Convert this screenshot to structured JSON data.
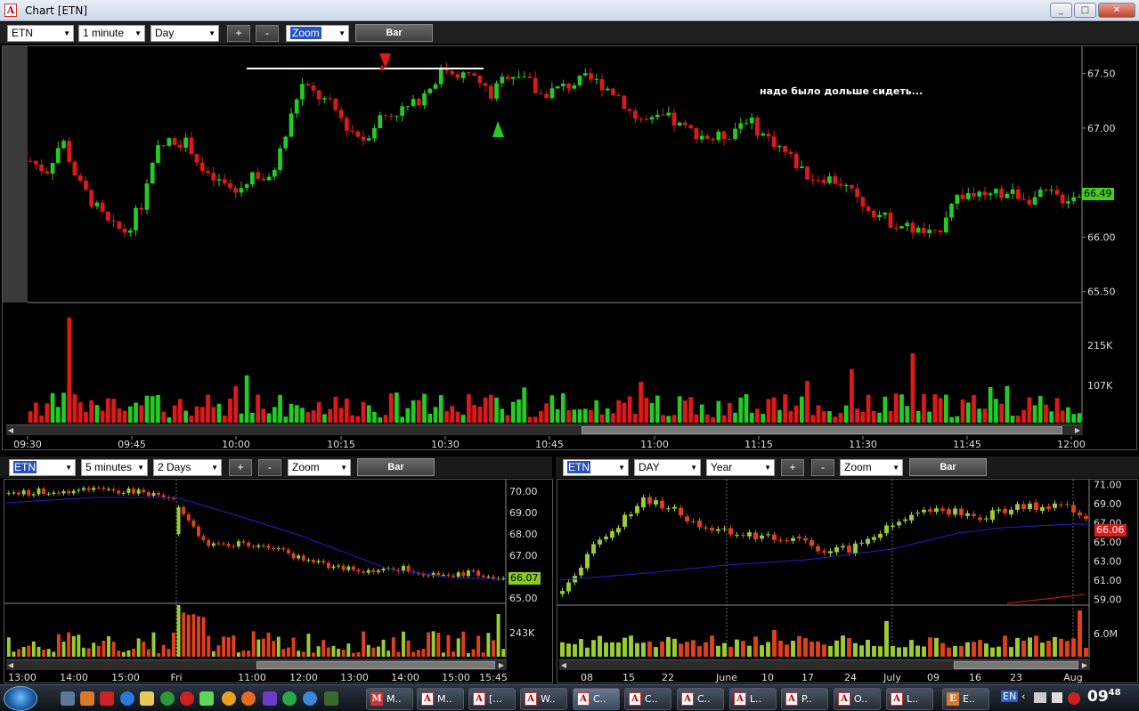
{
  "window": {
    "title": "Chart [ETN]",
    "app_icon": "A",
    "min": "_",
    "max": "□",
    "close": "✕"
  },
  "colors": {
    "up": "#22cc22",
    "down": "#e01818",
    "volume_up": "#22cc22",
    "volume_down": "#e01818",
    "small_up": "#9acd32",
    "small_down": "#e0401a",
    "ma_line": "#2020d0",
    "accent_select": "#2a52be"
  },
  "main": {
    "toolbar": {
      "symbol": "ETN",
      "interval": "1 minute",
      "range": "Day",
      "plus": "+",
      "minus": "-",
      "mode": "Zoom",
      "bar": "Bar"
    },
    "annotation": "надо было дольше сидеть...",
    "price_tag": "66.49",
    "price_ticks": [
      "67.50",
      "67.00",
      "66.00",
      "65.50"
    ],
    "volume_ticks": [
      "215K",
      "107K"
    ],
    "time_ticks": [
      "09:30",
      "09:45",
      "10:00",
      "10:15",
      "10:30",
      "10:45",
      "11:00",
      "11:15",
      "11:30",
      "11:45",
      "12:00"
    ]
  },
  "left": {
    "toolbar": {
      "symbol": "ETN",
      "interval": "5 minutes",
      "range": "2 Days",
      "plus": "+",
      "minus": "-",
      "mode": "Zoom",
      "bar": "Bar"
    },
    "price_tag": "66.07",
    "price_ticks": [
      "70.00",
      "69.00",
      "68.00",
      "67.00",
      "65.00"
    ],
    "volume_ticks": [
      "243K"
    ],
    "time_ticks": [
      "13:00",
      "14:00",
      "15:00",
      "Fri",
      "11:00",
      "12:00",
      "13:00",
      "14:00",
      "15:00",
      "15:45"
    ]
  },
  "right": {
    "toolbar": {
      "symbol": "ETN",
      "interval": "DAY",
      "range": "Year",
      "plus": "+",
      "minus": "-",
      "mode": "Zoom",
      "bar": "Bar"
    },
    "price_tag": "66.06",
    "price_ticks": [
      "71.00",
      "69.00",
      "67.00",
      "65.00",
      "63.00",
      "61.00",
      "59.00"
    ],
    "volume_ticks": [
      "6.0M"
    ],
    "time_ticks": [
      "08",
      "15",
      "22",
      "June",
      "10",
      "17",
      "24",
      "July",
      "09",
      "16",
      "23",
      "Aug"
    ]
  },
  "chart_data": [
    {
      "type": "candlestick",
      "symbol": "ETN",
      "interval": "1 minute",
      "range": "Day",
      "ylim": [
        65.4,
        67.75
      ],
      "last_price": 66.49,
      "x_ticks": [
        "09:30",
        "09:45",
        "10:00",
        "10:15",
        "10:30",
        "10:45",
        "11:00",
        "11:15",
        "11:30",
        "11:45",
        "12:00"
      ],
      "price_ticks": [
        67.5,
        67.0,
        66.0,
        65.5
      ],
      "volume_ticks": [
        "215K",
        "107K"
      ],
      "close_path": [
        66.7,
        66.6,
        66.9,
        66.5,
        66.3,
        66.1,
        66.05,
        66.3,
        66.8,
        66.9,
        66.85,
        66.55,
        66.5,
        66.4,
        66.6,
        66.5,
        66.9,
        67.4,
        67.3,
        67.2,
        67.0,
        66.9,
        67.1,
        67.15,
        67.2,
        67.35,
        67.55,
        67.5,
        67.45,
        67.3,
        67.5,
        67.5,
        67.3,
        67.35,
        67.4,
        67.45,
        67.4,
        67.3,
        67.1,
        67.05,
        67.1,
        67.0,
        66.95,
        66.9,
        66.95,
        67.1,
        66.95,
        66.85,
        66.7,
        66.55,
        66.55,
        66.5,
        66.35,
        66.25,
        66.15,
        66.1,
        66.05,
        66.0,
        66.35,
        66.4,
        66.35,
        66.4,
        66.4,
        66.35,
        66.4,
        66.35,
        66.4
      ]
    },
    {
      "type": "candlestick",
      "symbol": "ETN",
      "interval": "5 minutes",
      "range": "2 Days",
      "ylim": [
        64.8,
        70.3
      ],
      "last_price": 66.07,
      "x_ticks": [
        "13:00",
        "14:00",
        "15:00",
        "Fri",
        "11:00",
        "12:00",
        "13:00",
        "14:00",
        "15:00",
        "15:45"
      ],
      "price_ticks": [
        70.0,
        69.0,
        68.0,
        67.0,
        65.0
      ],
      "volume_ticks": [
        "243K"
      ],
      "moving_average": true
    },
    {
      "type": "candlestick",
      "symbol": "ETN",
      "interval": "DAY",
      "range": "Year",
      "ylim": [
        58.5,
        71.5
      ],
      "last_price": 66.06,
      "x_ticks": [
        "08",
        "15",
        "22",
        "June",
        "10",
        "17",
        "24",
        "July",
        "09",
        "16",
        "23",
        "Aug"
      ],
      "price_ticks": [
        71.0,
        69.0,
        67.0,
        65.0,
        63.0,
        61.0,
        59.0
      ],
      "volume_ticks": [
        "6.0M"
      ],
      "moving_average": true
    }
  ]
}
